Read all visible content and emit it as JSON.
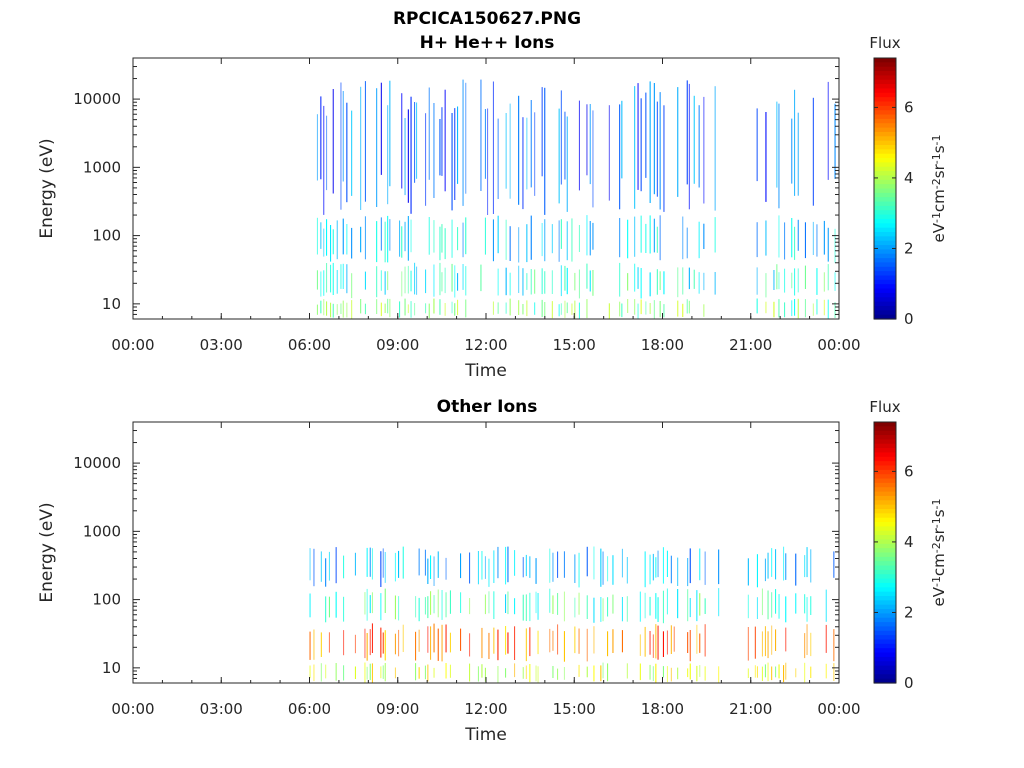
{
  "figure_title": "RPCICA150627.PNG",
  "chart_data": [
    {
      "type": "heatmap",
      "title": "H+ He++ Ions",
      "xlabel": "Time",
      "ylabel": "Energy (eV)",
      "x_ticks": [
        "00:00",
        "03:00",
        "06:00",
        "09:00",
        "12:00",
        "15:00",
        "18:00",
        "21:00",
        "00:00"
      ],
      "xlim_hours": [
        0,
        24
      ],
      "y_scale": "log",
      "ylim": [
        6,
        40000
      ],
      "y_ticks": [
        10,
        100,
        1000,
        10000
      ],
      "y_tick_labels": [
        "10",
        "100",
        "1000",
        "10000"
      ],
      "data_intervals_hours": [
        [
          6.25,
          19.9
        ],
        [
          21.0,
          23.9
        ]
      ],
      "energy_bands": [
        {
          "range_eV": [
            6,
            12
          ],
          "flux": 3.6
        },
        {
          "range_eV": [
            12,
            40
          ],
          "flux": 3.0
        },
        {
          "range_eV": [
            40,
            200
          ],
          "flux": 2.5
        },
        {
          "range_eV": [
            200,
            20000
          ],
          "flux": 1.6
        }
      ],
      "colorbar": {
        "title": "Flux",
        "label": "eV-1cm-2sr-1s-1",
        "label_parts": [
          "eV",
          "-1",
          "cm",
          "-2",
          "sr",
          "-1",
          "s",
          "-1"
        ],
        "ticks": [
          0,
          2,
          4,
          6
        ],
        "tick_labels": [
          "0",
          "2",
          "4",
          "6"
        ],
        "range": [
          0,
          7.4
        ],
        "colormap": "jet"
      }
    },
    {
      "type": "heatmap",
      "title": "Other Ions",
      "xlabel": "Time",
      "ylabel": "Energy (eV)",
      "x_ticks": [
        "00:00",
        "03:00",
        "06:00",
        "09:00",
        "12:00",
        "15:00",
        "18:00",
        "21:00",
        "00:00"
      ],
      "xlim_hours": [
        0,
        24
      ],
      "y_scale": "log",
      "ylim": [
        6,
        40000
      ],
      "y_ticks": [
        10,
        100,
        1000,
        10000
      ],
      "y_tick_labels": [
        "10",
        "100",
        "1000",
        "10000"
      ],
      "data_intervals_hours": [
        [
          6.0,
          19.9
        ],
        [
          20.9,
          23.9
        ]
      ],
      "energy_bands": [
        {
          "range_eV": [
            6,
            12
          ],
          "flux": 4.4
        },
        {
          "range_eV": [
            12,
            45
          ],
          "flux": 5.6
        },
        {
          "range_eV": [
            45,
            150
          ],
          "flux": 3.2
        },
        {
          "range_eV": [
            150,
            600
          ],
          "flux": 2.2
        }
      ],
      "colorbar": {
        "title": "Flux",
        "label": "eV-1cm-2sr-1s-1",
        "label_parts": [
          "eV",
          "-1",
          "cm",
          "-2",
          "sr",
          "-1",
          "s",
          "-1"
        ],
        "ticks": [
          0,
          2,
          4,
          6
        ],
        "tick_labels": [
          "0",
          "2",
          "4",
          "6"
        ],
        "range": [
          0,
          7.4
        ],
        "colormap": "jet"
      }
    }
  ]
}
